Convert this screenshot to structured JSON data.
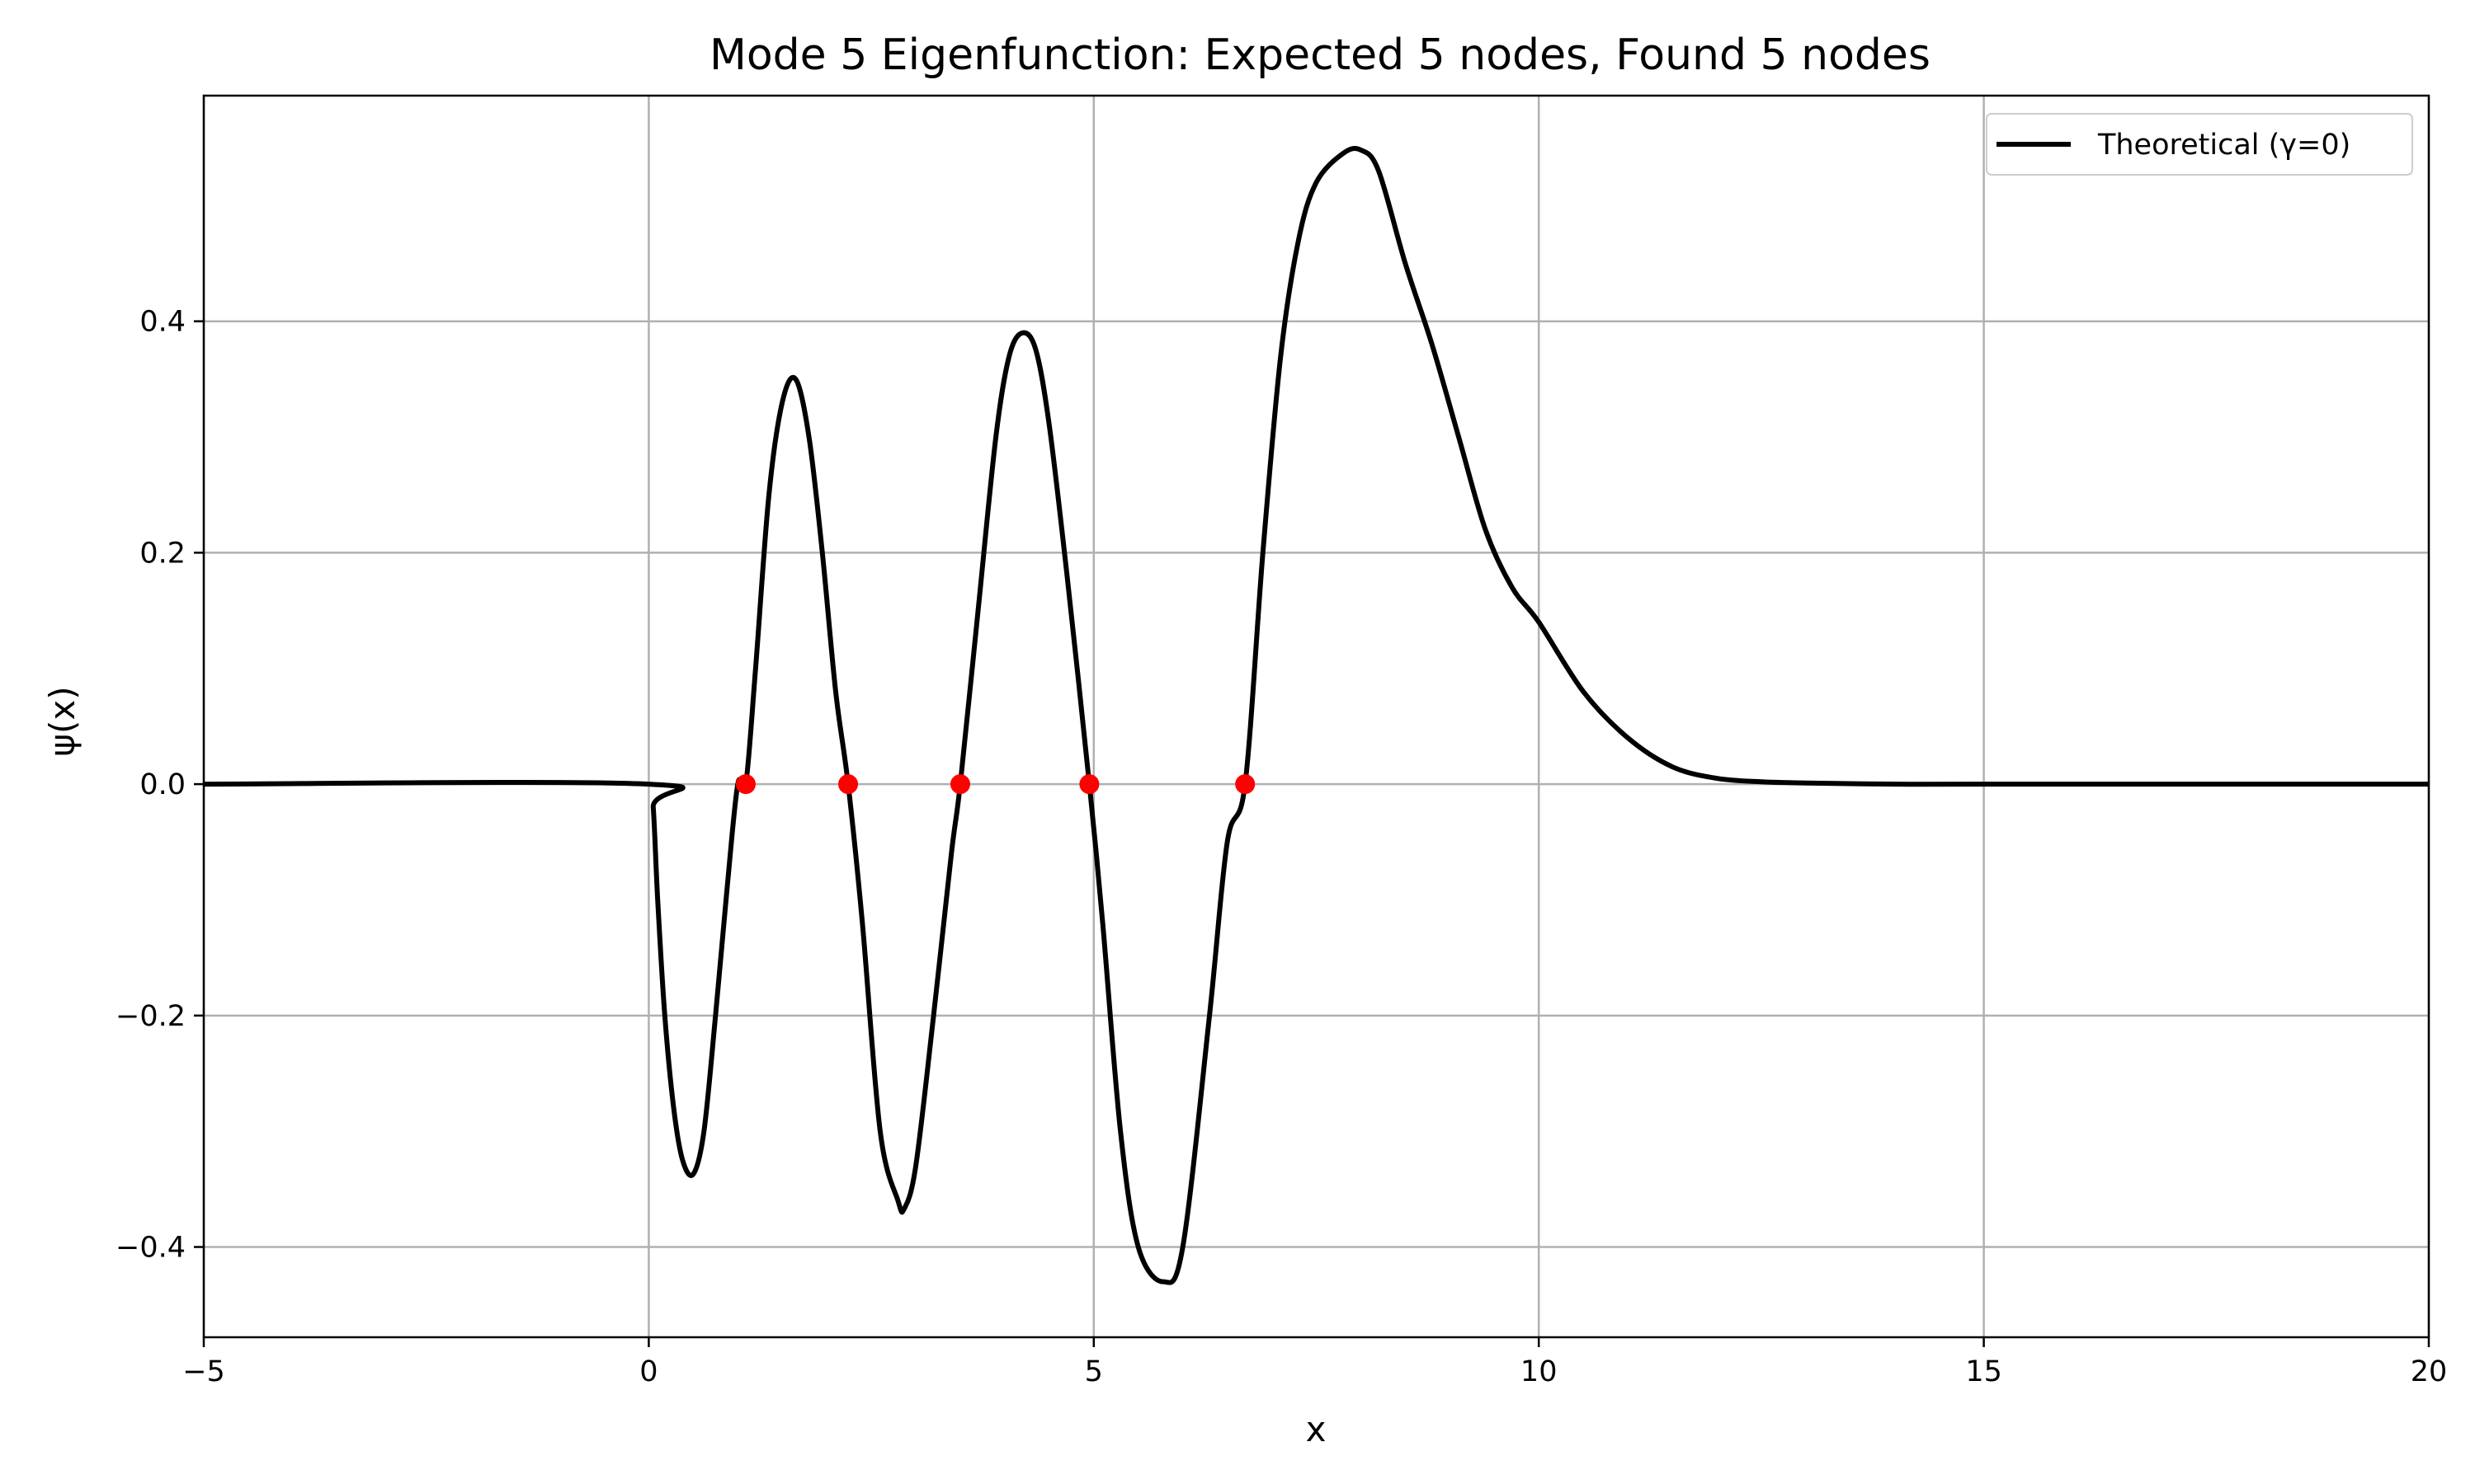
{
  "chart_data": {
    "type": "line",
    "title": "Mode 5 Eigenfunction: Expected 5 nodes, Found 5 nodes",
    "xlabel": "x",
    "ylabel": "ψ(x)",
    "xlim": [
      -5,
      20
    ],
    "ylim": [
      -0.478,
      0.595
    ],
    "grid": true,
    "legend_position": "top-right",
    "x_ticks": [
      -5,
      0,
      5,
      10,
      15,
      20
    ],
    "x_tick_labels": [
      "−5",
      "0",
      "5",
      "10",
      "15",
      "20"
    ],
    "y_ticks": [
      -0.4,
      -0.2,
      0.0,
      0.2,
      0.4
    ],
    "y_tick_labels": [
      "−0.4",
      "−0.2",
      "0.0",
      "0.2",
      "0.4"
    ],
    "series": [
      {
        "name": "Theoretical (γ=0)",
        "color": "#000000",
        "x": [
          -5,
          0,
          0.05,
          0.1,
          0.18,
          0.28,
          0.38,
          0.5,
          0.62,
          0.75,
          0.88,
          1.0,
          1.09,
          1.2,
          1.35,
          1.5,
          1.65,
          1.8,
          1.95,
          2.1,
          2.24,
          2.4,
          2.6,
          2.8,
          2.87,
          3.0,
          3.2,
          3.4,
          3.5,
          3.7,
          3.9,
          4.05,
          4.2,
          4.35,
          4.5,
          4.7,
          4.95,
          5.1,
          5.3,
          5.5,
          5.78,
          6.0,
          6.3,
          6.5,
          6.7,
          6.9,
          7.1,
          7.3,
          7.5,
          7.8,
          8.0,
          8.2,
          8.5,
          8.8,
          9.1,
          9.4,
          9.7,
          10.0,
          10.5,
          11.0,
          11.5,
          12.0,
          12.5,
          13.0,
          14.0,
          15.0,
          20.0
        ],
        "y": [
          0,
          0,
          -0.02,
          -0.1,
          -0.2,
          -0.28,
          -0.325,
          -0.337,
          -0.3,
          -0.2,
          -0.09,
          0.0,
          0.0,
          0.1,
          0.25,
          0.33,
          0.35,
          0.3,
          0.2,
          0.08,
          0.0,
          -0.12,
          -0.3,
          -0.36,
          -0.367,
          -0.33,
          -0.2,
          -0.06,
          0.0,
          0.15,
          0.3,
          0.37,
          0.39,
          0.375,
          0.31,
          0.18,
          0.0,
          -0.12,
          -0.3,
          -0.4,
          -0.43,
          -0.4,
          -0.2,
          -0.05,
          0.0,
          0.2,
          0.37,
          0.47,
          0.52,
          0.545,
          0.548,
          0.53,
          0.45,
          0.38,
          0.3,
          0.22,
          0.17,
          0.14,
          0.08,
          0.04,
          0.015,
          0.005,
          0.002,
          0.001,
          0,
          0,
          0
        ]
      }
    ],
    "nodes": {
      "color": "#ff0000",
      "x": [
        1.09,
        2.24,
        3.5,
        4.95,
        6.7
      ],
      "y": [
        0,
        0,
        0,
        0,
        0
      ]
    }
  }
}
